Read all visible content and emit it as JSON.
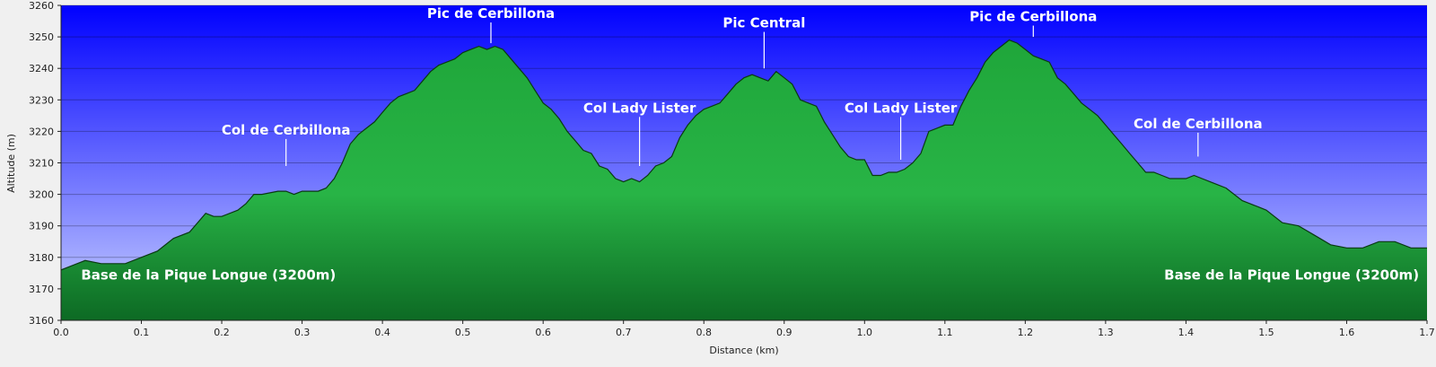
{
  "chart_data": {
    "type": "area",
    "xlabel": "Distance    (km)",
    "ylabel": "Altitude  (m)",
    "xlim": [
      0,
      1.7
    ],
    "ylim": [
      3160,
      3260
    ],
    "x_ticks": [
      "0.0",
      "0.1",
      "0.2",
      "0.3",
      "0.4",
      "0.5",
      "0.6",
      "0.7",
      "0.8",
      "0.9",
      "1.0",
      "1.1",
      "1.2",
      "1.3",
      "1.4",
      "1.5",
      "1.6",
      "1.7"
    ],
    "y_ticks": [
      "3160",
      "3170",
      "3180",
      "3190",
      "3200",
      "3210",
      "3220",
      "3230",
      "3240",
      "3250",
      "3260"
    ],
    "grid": true,
    "background_colors": {
      "top": "#0000ff",
      "bottom": "#ccd4ff"
    },
    "fill_colors": {
      "top": "#1fa63a",
      "mid": "#28b446",
      "bottom": "#0d6a24"
    },
    "series": [
      {
        "x": [
          0.0,
          0.01,
          0.02,
          0.03,
          0.05,
          0.08,
          0.1,
          0.12,
          0.14,
          0.16,
          0.18,
          0.19,
          0.2,
          0.22,
          0.23,
          0.24,
          0.25,
          0.27,
          0.28,
          0.29,
          0.3,
          0.32,
          0.33,
          0.34,
          0.35,
          0.36,
          0.37,
          0.38,
          0.39,
          0.4,
          0.41,
          0.42,
          0.43,
          0.44,
          0.45,
          0.46,
          0.47,
          0.48,
          0.49,
          0.5,
          0.51,
          0.52,
          0.53,
          0.54,
          0.55,
          0.56,
          0.57,
          0.58,
          0.59,
          0.6,
          0.61,
          0.62,
          0.63,
          0.64,
          0.65,
          0.66,
          0.67,
          0.68,
          0.69,
          0.7,
          0.71,
          0.72,
          0.73,
          0.74,
          0.75,
          0.76,
          0.77,
          0.78,
          0.79,
          0.8,
          0.81,
          0.82,
          0.83,
          0.84,
          0.85,
          0.86,
          0.87,
          0.88,
          0.89,
          0.9,
          0.91,
          0.92,
          0.93,
          0.94,
          0.95,
          0.96,
          0.97,
          0.98,
          0.99,
          1.0,
          1.01,
          1.02,
          1.03,
          1.04,
          1.05,
          1.06,
          1.07,
          1.08,
          1.09,
          1.1,
          1.11,
          1.12,
          1.13,
          1.14,
          1.15,
          1.16,
          1.17,
          1.18,
          1.19,
          1.2,
          1.21,
          1.22,
          1.23,
          1.24,
          1.25,
          1.26,
          1.27,
          1.28,
          1.29,
          1.3,
          1.31,
          1.32,
          1.33,
          1.34,
          1.35,
          1.36,
          1.37,
          1.38,
          1.39,
          1.4,
          1.41,
          1.42,
          1.43,
          1.44,
          1.45,
          1.46,
          1.47,
          1.48,
          1.49,
          1.5,
          1.52,
          1.54,
          1.56,
          1.58,
          1.6,
          1.62,
          1.64,
          1.66,
          1.68,
          1.7
        ],
        "y": [
          3176,
          3177,
          3178,
          3179,
          3178,
          3178,
          3180,
          3182,
          3186,
          3188,
          3194,
          3193,
          3193,
          3195,
          3197,
          3200,
          3200,
          3201,
          3201,
          3200,
          3201,
          3201,
          3202,
          3205,
          3210,
          3216,
          3219,
          3221,
          3223,
          3226,
          3229,
          3231,
          3232,
          3233,
          3236,
          3239,
          3241,
          3242,
          3243,
          3245,
          3246,
          3247,
          3246,
          3247,
          3246,
          3243,
          3240,
          3237,
          3233,
          3229,
          3227,
          3224,
          3220,
          3217,
          3214,
          3213,
          3209,
          3208,
          3205,
          3204,
          3205,
          3204,
          3206,
          3209,
          3210,
          3212,
          3218,
          3222,
          3225,
          3227,
          3228,
          3229,
          3232,
          3235,
          3237,
          3238,
          3237,
          3236,
          3239,
          3237,
          3235,
          3230,
          3229,
          3228,
          3223,
          3219,
          3215,
          3212,
          3211,
          3211,
          3206,
          3206,
          3207,
          3207,
          3208,
          3210,
          3213,
          3220,
          3221,
          3222,
          3222,
          3228,
          3233,
          3237,
          3242,
          3245,
          3247,
          3249,
          3248,
          3246,
          3244,
          3243,
          3242,
          3237,
          3235,
          3232,
          3229,
          3227,
          3225,
          3222,
          3219,
          3216,
          3213,
          3210,
          3207,
          3207,
          3206,
          3205,
          3205,
          3205,
          3206,
          3205,
          3204,
          3203,
          3202,
          3200,
          3198,
          3197,
          3196,
          3195,
          3191,
          3190,
          3187,
          3184,
          3183,
          3183,
          3185,
          3185,
          3183,
          3183
        ]
      }
    ],
    "annotations": [
      {
        "text": "Col de Cerbillona",
        "x": 0.28,
        "y": 3209,
        "label_y": 3219,
        "anchor": "middle"
      },
      {
        "text": "Pic de Cerbillona",
        "x": 0.535,
        "y": 3248,
        "label_y": 3256,
        "anchor": "middle"
      },
      {
        "text": "Col Lady Lister",
        "x": 0.72,
        "y": 3209,
        "label_y": 3226,
        "anchor": "middle"
      },
      {
        "text": "Pic Central",
        "x": 0.875,
        "y": 3240,
        "label_y": 3253,
        "anchor": "middle"
      },
      {
        "text": "Col Lady Lister",
        "x": 1.045,
        "y": 3211,
        "label_y": 3226,
        "anchor": "middle"
      },
      {
        "text": "Pic de Cerbillona",
        "x": 1.21,
        "y": 3250,
        "label_y": 3255,
        "anchor": "middle"
      },
      {
        "text": "Col de Cerbillona",
        "x": 1.415,
        "y": 3212,
        "label_y": 3221,
        "anchor": "middle"
      }
    ],
    "bottom_labels": [
      {
        "text": "Base de la Pique Longue (3200m)",
        "x": 0.025,
        "y": 3173,
        "anchor": "start"
      },
      {
        "text": "Base de la Pique Longue (3200m)",
        "x": 1.69,
        "y": 3173,
        "anchor": "end"
      }
    ]
  }
}
